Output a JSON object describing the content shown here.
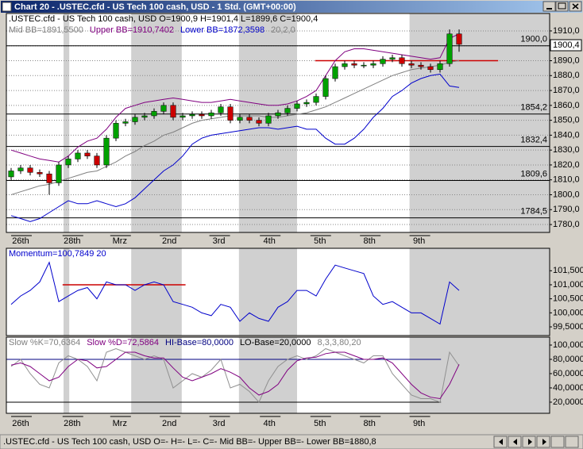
{
  "window": {
    "title": "Chart 20 - .USTEC.cfd - US Tech 100 cash, USD - 1 Std. (GMT+00:00)"
  },
  "status_bar": {
    "text": ".USTEC.cfd - US Tech 100 cash, USD O=- H=- L=- C=-  Mid BB=- Upper BB=- Lower BB=-",
    "value": "1880,8"
  },
  "chart_data": [
    {
      "type": "candlestick",
      "header": ".USTEC.cfd - US Tech 100 cash, USD O=1900,9 H=1901,4 L=1899,6 C=1900,4",
      "legend": [
        {
          "text": "Mid BB=1891,5500",
          "color": "#808080"
        },
        {
          "text": "Upper BB=1910,7402",
          "color": "#800080"
        },
        {
          "text": "Lower BB=1872,3598",
          "color": "#0000cc"
        },
        {
          "text": "20,2,0",
          "color": "#808080"
        }
      ],
      "up_color": "#00a000",
      "down_color": "#cc0000",
      "open": [
        1812,
        1816,
        1818,
        1815,
        1814,
        1808,
        1820,
        1824,
        1828,
        1826,
        1820,
        1838,
        1848,
        1849,
        1852,
        1853,
        1856,
        1860,
        1852,
        1853,
        1854,
        1853,
        1855,
        1859,
        1850,
        1852,
        1850,
        1848,
        1853,
        1855,
        1858,
        1861,
        1862,
        1866,
        1878,
        1886,
        1888,
        1887,
        1887,
        1888,
        1891,
        1892,
        1888,
        1887,
        1886,
        1884,
        1888,
        1908
      ],
      "high": [
        1818,
        1820,
        1820,
        1817,
        1816,
        1822,
        1826,
        1830,
        1830,
        1828,
        1840,
        1850,
        1851,
        1854,
        1855,
        1858,
        1862,
        1862,
        1855,
        1856,
        1856,
        1857,
        1861,
        1861,
        1854,
        1854,
        1852,
        1855,
        1857,
        1860,
        1863,
        1864,
        1868,
        1880,
        1888,
        1890,
        1890,
        1889,
        1890,
        1893,
        1894,
        1894,
        1890,
        1889,
        1888,
        1890,
        1911,
        1911
      ],
      "low": [
        1810,
        1814,
        1813,
        1812,
        1800,
        1806,
        1818,
        1822,
        1824,
        1818,
        1818,
        1836,
        1846,
        1847,
        1850,
        1851,
        1854,
        1850,
        1850,
        1851,
        1851,
        1851,
        1853,
        1848,
        1848,
        1848,
        1846,
        1846,
        1851,
        1853,
        1856,
        1859,
        1860,
        1864,
        1876,
        1884,
        1885,
        1885,
        1885,
        1886,
        1889,
        1886,
        1885,
        1884,
        1882,
        1882,
        1886,
        1896
      ],
      "close": [
        1816,
        1818,
        1815,
        1814,
        1808,
        1820,
        1824,
        1828,
        1826,
        1820,
        1838,
        1848,
        1849,
        1852,
        1853,
        1856,
        1860,
        1852,
        1853,
        1854,
        1853,
        1855,
        1859,
        1850,
        1852,
        1850,
        1848,
        1853,
        1855,
        1858,
        1861,
        1862,
        1866,
        1878,
        1886,
        1888,
        1887,
        1887,
        1888,
        1891,
        1892,
        1888,
        1887,
        1886,
        1884,
        1888,
        1908,
        1901
      ],
      "series": [
        {
          "color": "#808080",
          "values": [
            1800,
            1802,
            1804,
            1806,
            1807,
            1809,
            1811,
            1813,
            1815,
            1816,
            1819,
            1822,
            1826,
            1829,
            1833,
            1836,
            1840,
            1842,
            1845,
            1848,
            1850,
            1851,
            1852,
            1853,
            1853,
            1853,
            1853,
            1852,
            1852,
            1853,
            1854,
            1855,
            1857,
            1859,
            1862,
            1865,
            1868,
            1871,
            1874,
            1877,
            1880,
            1882,
            1884,
            1885,
            1886,
            1887,
            1889,
            1890
          ]
        },
        {
          "color": "#800080",
          "values": [
            1830,
            1828,
            1826,
            1824,
            1823,
            1822,
            1826,
            1832,
            1836,
            1838,
            1844,
            1852,
            1858,
            1860,
            1862,
            1863,
            1864,
            1865,
            1864,
            1863,
            1862,
            1862,
            1863,
            1864,
            1863,
            1862,
            1861,
            1860,
            1860,
            1861,
            1863,
            1866,
            1870,
            1880,
            1890,
            1896,
            1898,
            1898,
            1897,
            1896,
            1895,
            1894,
            1893,
            1892,
            1891,
            1892,
            1905,
            1908
          ]
        },
        {
          "color": "#0000cc",
          "values": [
            1786,
            1784,
            1782,
            1784,
            1788,
            1792,
            1796,
            1794,
            1794,
            1796,
            1794,
            1792,
            1794,
            1798,
            1804,
            1810,
            1816,
            1820,
            1826,
            1834,
            1838,
            1840,
            1841,
            1842,
            1843,
            1844,
            1845,
            1845,
            1844,
            1845,
            1846,
            1844,
            1844,
            1838,
            1834,
            1834,
            1838,
            1844,
            1852,
            1858,
            1866,
            1870,
            1875,
            1878,
            1880,
            1881,
            1873,
            1872
          ]
        }
      ],
      "xlim": [
        -0.5,
        56.5
      ],
      "xticks": [
        {
          "value": 1.0,
          "label": "26th"
        },
        {
          "value": 6.4,
          "label": "28th"
        },
        {
          "value": 11.4,
          "label": "Mrz"
        },
        {
          "value": 16.6,
          "label": "2nd"
        },
        {
          "value": 21.8,
          "label": "3rd"
        },
        {
          "value": 27.1,
          "label": "4th"
        },
        {
          "value": 32.4,
          "label": "5th"
        },
        {
          "value": 37.6,
          "label": "8th"
        },
        {
          "value": 42.8,
          "label": "9th"
        }
      ],
      "shaded_ranges": [
        [
          5.5,
          6.1
        ],
        [
          12.6,
          17.9
        ],
        [
          23.9,
          30.0
        ],
        [
          41.8,
          56.5
        ]
      ],
      "ylim": [
        1774.7,
        1921.7
      ],
      "yticks": [
        {
          "value": 1780,
          "label": "1780,0"
        },
        {
          "value": 1790,
          "label": "1790,0"
        },
        {
          "value": 1800,
          "label": "1800,0"
        },
        {
          "value": 1810,
          "label": "1810,0"
        },
        {
          "value": 1820,
          "label": "1820,0"
        },
        {
          "value": 1830,
          "label": "1830,0"
        },
        {
          "value": 1840,
          "label": "1840,0"
        },
        {
          "value": 1850,
          "label": "1850,0"
        },
        {
          "value": 1860,
          "label": "1860,0"
        },
        {
          "value": 1870,
          "label": "1870,0"
        },
        {
          "value": 1880,
          "label": "1880,0"
        },
        {
          "value": 1890,
          "label": "1890,0"
        },
        {
          "value": 1900,
          "label": "1900,0"
        },
        {
          "value": 1910,
          "label": "1910,0"
        }
      ],
      "grid": true,
      "levels": [
        {
          "value": 1900.0,
          "label": "1900,0"
        },
        {
          "value": 1854.2,
          "label": "1854,2"
        },
        {
          "value": 1832.4,
          "label": "1832,4"
        },
        {
          "value": 1809.6,
          "label": "1809,6"
        },
        {
          "value": 1784.5,
          "label": "1784,5"
        }
      ],
      "last_price": {
        "value": 1900.4,
        "label": "1900,4"
      },
      "red_line": {
        "value": 1890,
        "x": [
          31.9,
          51.1
        ],
        "color": "#cc0000"
      }
    },
    {
      "type": "line",
      "legend": [
        {
          "text": "Momentum=100,7849  20",
          "color": "#0000cc"
        }
      ],
      "series": [
        {
          "color": "#0000cc",
          "values": [
            100.3,
            100.6,
            100.8,
            101.1,
            101.8,
            100.4,
            100.6,
            100.8,
            100.9,
            100.5,
            101.1,
            101.0,
            101.0,
            100.8,
            101.0,
            101.1,
            101.0,
            100.4,
            100.3,
            100.2,
            100.0,
            99.9,
            100.3,
            100.2,
            99.7,
            100.0,
            99.8,
            99.7,
            100.2,
            100.4,
            100.8,
            100.8,
            100.6,
            101.2,
            101.7,
            101.6,
            101.5,
            101.4,
            100.6,
            100.3,
            100.4,
            100.2,
            100.0,
            100.0,
            99.8,
            99.6,
            101.1,
            100.8
          ]
        }
      ],
      "xlim": [
        -0.5,
        56.5
      ],
      "ylim": [
        99.19,
        102.3
      ],
      "yticks": [
        {
          "value": 99.5,
          "label": "99,5000"
        },
        {
          "value": 100,
          "label": "100,0000"
        },
        {
          "value": 100.5,
          "label": "100,5000"
        },
        {
          "value": 101,
          "label": "101,0000"
        },
        {
          "value": 101.5,
          "label": "101,5000"
        }
      ],
      "red_line": {
        "value": 101.0,
        "x": [
          5.4,
          18.3
        ],
        "color": "#cc0000"
      }
    },
    {
      "type": "line",
      "legend": [
        {
          "text": "Slow %K=70,6364",
          "color": "#808080"
        },
        {
          "text": "Slow %D=72,5864",
          "color": "#800080"
        },
        {
          "text": "HI-Base=80,0000",
          "color": "#000080"
        },
        {
          "text": "LO-Base=20,0000",
          "color": "#000000"
        },
        {
          "text": "8,3,3,80,20",
          "color": "#808080"
        }
      ],
      "series": [
        {
          "color": "#909090",
          "values": [
            70,
            80,
            60,
            45,
            40,
            75,
            85,
            80,
            70,
            50,
            90,
            95,
            90,
            85,
            80,
            85,
            80,
            40,
            50,
            60,
            55,
            65,
            80,
            40,
            45,
            35,
            20,
            50,
            70,
            80,
            85,
            80,
            85,
            95,
            90,
            85,
            80,
            75,
            85,
            85,
            60,
            45,
            30,
            25,
            25,
            20,
            90,
            71
          ]
        },
        {
          "color": "#800080",
          "values": [
            72,
            75,
            70,
            60,
            50,
            55,
            70,
            80,
            78,
            68,
            70,
            80,
            90,
            90,
            85,
            82,
            82,
            68,
            55,
            50,
            55,
            60,
            67,
            62,
            55,
            40,
            30,
            35,
            45,
            65,
            78,
            82,
            83,
            88,
            90,
            90,
            85,
            80,
            80,
            82,
            75,
            60,
            45,
            33,
            27,
            25,
            45,
            73
          ]
        }
      ],
      "base_lines": [
        {
          "value": 80,
          "color": "#000080"
        },
        {
          "value": 20,
          "color": "#000000"
        }
      ],
      "xlim": [
        -0.5,
        56.5
      ],
      "xticks": [
        {
          "value": 1.0,
          "label": "26th"
        },
        {
          "value": 6.4,
          "label": "28th"
        },
        {
          "value": 11.4,
          "label": "Mrz"
        },
        {
          "value": 16.6,
          "label": "2nd"
        },
        {
          "value": 21.8,
          "label": "3rd"
        },
        {
          "value": 27.1,
          "label": "4th"
        },
        {
          "value": 32.4,
          "label": "5th"
        },
        {
          "value": 37.6,
          "label": "8th"
        },
        {
          "value": 42.8,
          "label": "9th"
        }
      ],
      "ylim": [
        4.4,
        111.1
      ],
      "yticks": [
        {
          "value": 20,
          "label": "20,0000"
        },
        {
          "value": 40,
          "label": "40,0000"
        },
        {
          "value": 60,
          "label": "60,0000"
        },
        {
          "value": 80,
          "label": "80,0000"
        },
        {
          "value": 100,
          "label": "100,0000"
        }
      ]
    }
  ]
}
